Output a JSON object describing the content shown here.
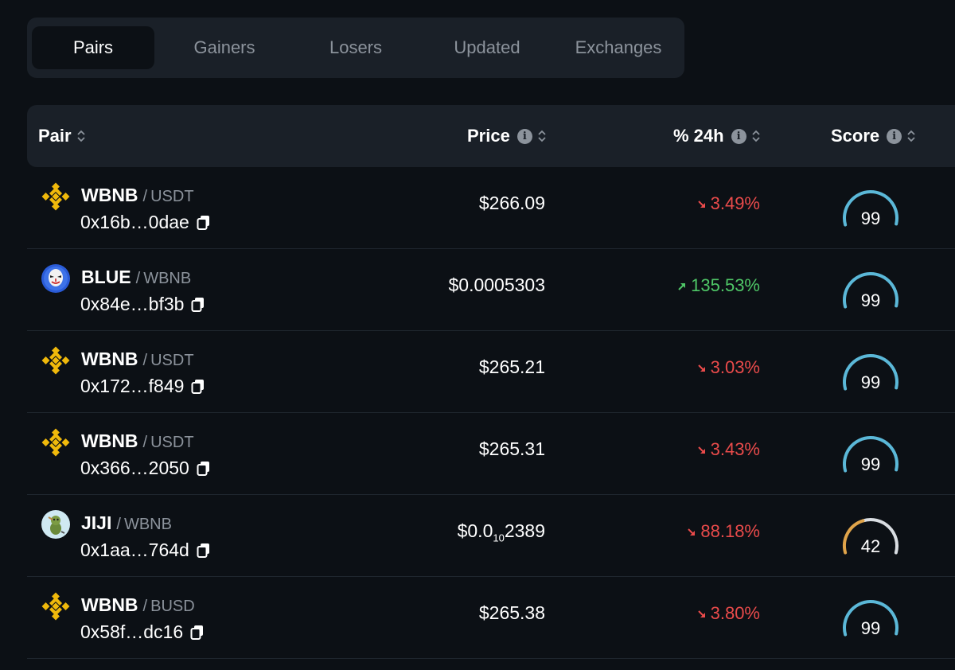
{
  "tabs": [
    {
      "label": "Pairs",
      "active": true
    },
    {
      "label": "Gainers",
      "active": false
    },
    {
      "label": "Losers",
      "active": false
    },
    {
      "label": "Updated",
      "active": false
    },
    {
      "label": "Exchanges",
      "active": false
    }
  ],
  "columns": {
    "pair": "Pair",
    "price": "Price",
    "change": "% 24h",
    "score": "Score",
    "info_glyph": "i"
  },
  "rows": [
    {
      "logo": "bnb-logo-icon",
      "base": "WBNB",
      "sep": "/",
      "quote": "USDT",
      "address": "0x16b…0dae",
      "price": "$266.09",
      "change": "3.49%",
      "direction": "down",
      "score": "99",
      "score_fraction": 0.99
    },
    {
      "logo": "blue-token-logo-icon",
      "base": "BLUE",
      "sep": "/",
      "quote": "WBNB",
      "address": "0x84e…bf3b",
      "price": "$0.0005303",
      "change": "135.53%",
      "direction": "up",
      "score": "99",
      "score_fraction": 0.99
    },
    {
      "logo": "bnb-logo-icon",
      "base": "WBNB",
      "sep": "/",
      "quote": "USDT",
      "address": "0x172…f849",
      "price": "$265.21",
      "change": "3.03%",
      "direction": "down",
      "score": "99",
      "score_fraction": 0.99
    },
    {
      "logo": "bnb-logo-icon",
      "base": "WBNB",
      "sep": "/",
      "quote": "USDT",
      "address": "0x366…2050",
      "price": "$265.31",
      "change": "3.43%",
      "direction": "down",
      "score": "99",
      "score_fraction": 0.99
    },
    {
      "logo": "jiji-token-logo-icon",
      "base": "JIJI",
      "sep": "/",
      "quote": "WBNB",
      "address": "0x1aa…764d",
      "price_main": "$0.0",
      "price_sub": "10",
      "price_tail": "2389",
      "change": "88.18%",
      "direction": "down",
      "score": "42",
      "score_fraction": 0.42
    },
    {
      "logo": "bnb-logo-icon",
      "base": "WBNB",
      "sep": "/",
      "quote": "BUSD",
      "address": "0x58f…dc16",
      "price": "$265.38",
      "change": "3.80%",
      "direction": "down",
      "score": "99",
      "score_fraction": 0.99
    }
  ],
  "colors": {
    "background": "#0c1015",
    "panel": "#1a2028",
    "muted": "#8c939c",
    "down": "#ea4b4b",
    "up": "#4fc767",
    "score_high": "#5bb8d8",
    "score_mid": "#e0a44a",
    "score_track": "#d9dde2",
    "bnb_gold": "#f0b90b"
  }
}
